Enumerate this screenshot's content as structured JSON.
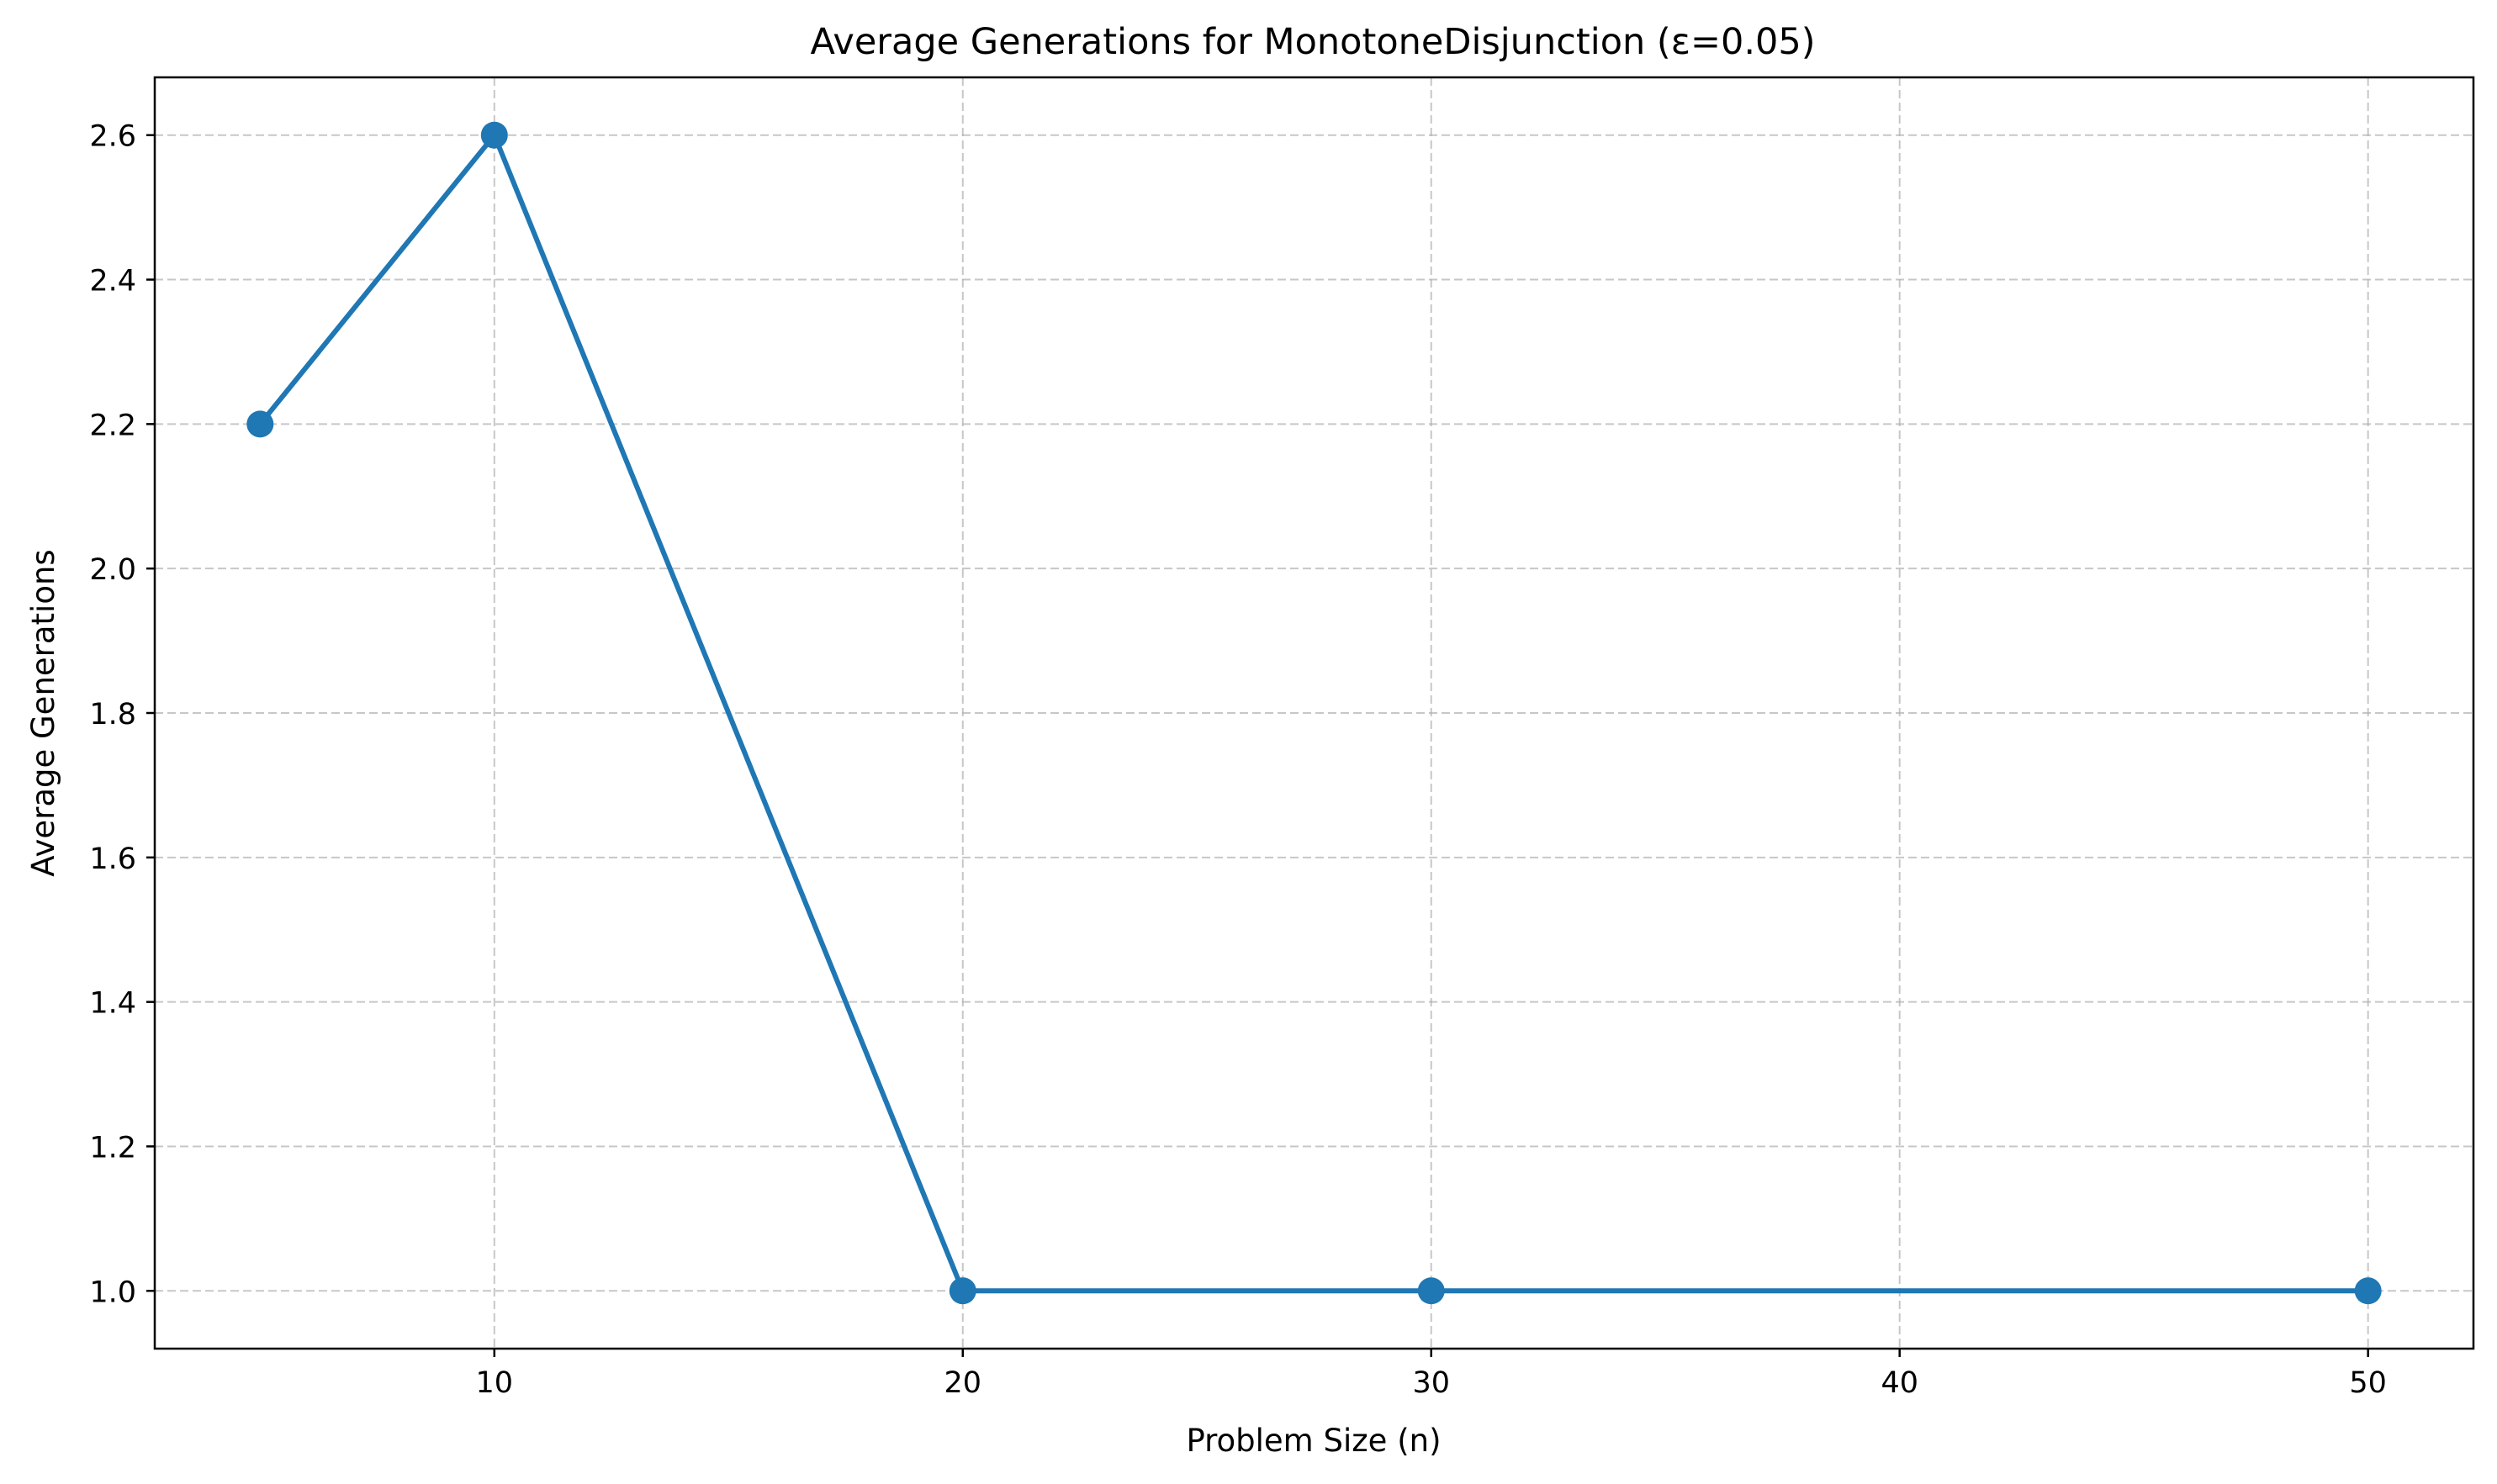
{
  "chart_data": {
    "type": "line",
    "title": "Average Generations for MonotoneDisjunction (ε=0.05)",
    "xlabel": "Problem Size (n)",
    "ylabel": "Average Generations",
    "x": [
      5,
      10,
      20,
      30,
      50
    ],
    "series": [
      {
        "values": [
          2.2,
          2.6,
          1.0,
          1.0,
          1.0
        ],
        "color": "#1f77b4",
        "marker": "circle"
      }
    ],
    "xlim": [
      2.75,
      52.25
    ],
    "ylim": [
      0.92,
      2.68
    ],
    "xticks": [
      10,
      20,
      30,
      40,
      50
    ],
    "xtick_labels": [
      "10",
      "20",
      "30",
      "40",
      "50"
    ],
    "yticks": [
      1.0,
      1.2,
      1.4,
      1.6,
      1.8,
      2.0,
      2.2,
      2.4,
      2.6
    ],
    "ytick_labels": [
      "1.0",
      "1.2",
      "1.4",
      "1.6",
      "1.8",
      "2.0",
      "2.2",
      "2.4",
      "2.6"
    ],
    "grid": true,
    "grid_style": "dashed",
    "grid_color": "#b0b0b0",
    "legend": false
  }
}
